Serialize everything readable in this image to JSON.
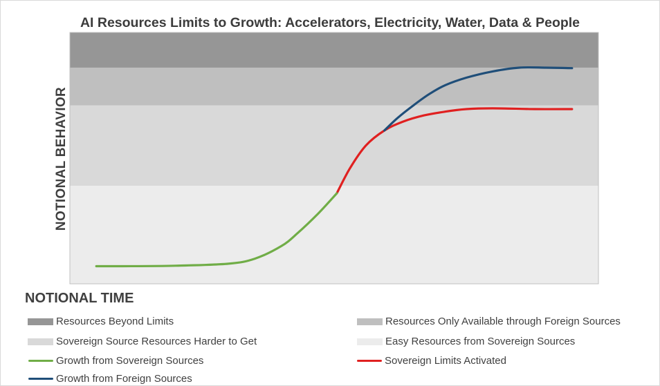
{
  "chart_data": {
    "type": "line",
    "title": "AI Resources Limits to Growth: Accelerators, Electricity, Water, Data & People",
    "xlabel": "NOTIONAL TIME",
    "ylabel": "NOTIONAL BEHAVIOR",
    "xlim": [
      0,
      100
    ],
    "ylim": [
      0,
      100
    ],
    "grid": false,
    "legend_position": "bottom",
    "bands": [
      {
        "name": "Easy Resources from Sovereign Sources",
        "from": 0,
        "to": 39,
        "color": "#ececec"
      },
      {
        "name": "Sovereign Source Resources Harder to Get",
        "from": 39,
        "to": 71,
        "color": "#d9d9d9"
      },
      {
        "name": "Resources Only Available through Foreign Sources",
        "from": 71,
        "to": 86,
        "color": "#bfbfbf"
      },
      {
        "name": "Resources Beyond Limits",
        "from": 86,
        "to": 100,
        "color": "#969696"
      }
    ],
    "series": [
      {
        "name": "Growth from Sovereign Sources",
        "color": "#70ad47",
        "points": [
          [
            5,
            7
          ],
          [
            10,
            7
          ],
          [
            20,
            7.2
          ],
          [
            30,
            8
          ],
          [
            35,
            10
          ],
          [
            40,
            15
          ],
          [
            43,
            20
          ],
          [
            47,
            28
          ],
          [
            50.5,
            36
          ]
        ]
      },
      {
        "name": "Sovereign Limits Activated",
        "color": "#e02020",
        "points": [
          [
            50.5,
            36
          ],
          [
            53,
            46
          ],
          [
            56,
            55
          ],
          [
            59.5,
            61
          ],
          [
            63,
            64.5
          ],
          [
            67,
            67
          ],
          [
            71,
            68.5
          ],
          [
            75,
            69.5
          ],
          [
            80,
            69.8
          ],
          [
            88,
            69.5
          ],
          [
            95,
            69.5
          ]
        ]
      },
      {
        "name": "Growth from Foreign Sources",
        "color": "#1f4e79",
        "points": [
          [
            59.5,
            61
          ],
          [
            62,
            66
          ],
          [
            65,
            71
          ],
          [
            68,
            75.5
          ],
          [
            71,
            79
          ],
          [
            75,
            82
          ],
          [
            80,
            84.5
          ],
          [
            85,
            86
          ],
          [
            90,
            86
          ],
          [
            95,
            85.8
          ]
        ]
      }
    ]
  },
  "legend": [
    {
      "label": "Resources Beyond Limits",
      "kind": "box",
      "color": "#969696"
    },
    {
      "label": "Resources Only Available through Foreign Sources",
      "kind": "box",
      "color": "#bfbfbf"
    },
    {
      "label": "Sovereign Source Resources Harder to Get",
      "kind": "box",
      "color": "#d9d9d9"
    },
    {
      "label": "Easy Resources from Sovereign Sources",
      "kind": "box",
      "color": "#ececec"
    },
    {
      "label": "Growth from Sovereign Sources",
      "kind": "line",
      "color": "#70ad47"
    },
    {
      "label": "Sovereign Limits Activated",
      "kind": "line",
      "color": "#e02020"
    },
    {
      "label": "Growth from Foreign Sources",
      "kind": "line",
      "color": "#1f4e79"
    }
  ]
}
